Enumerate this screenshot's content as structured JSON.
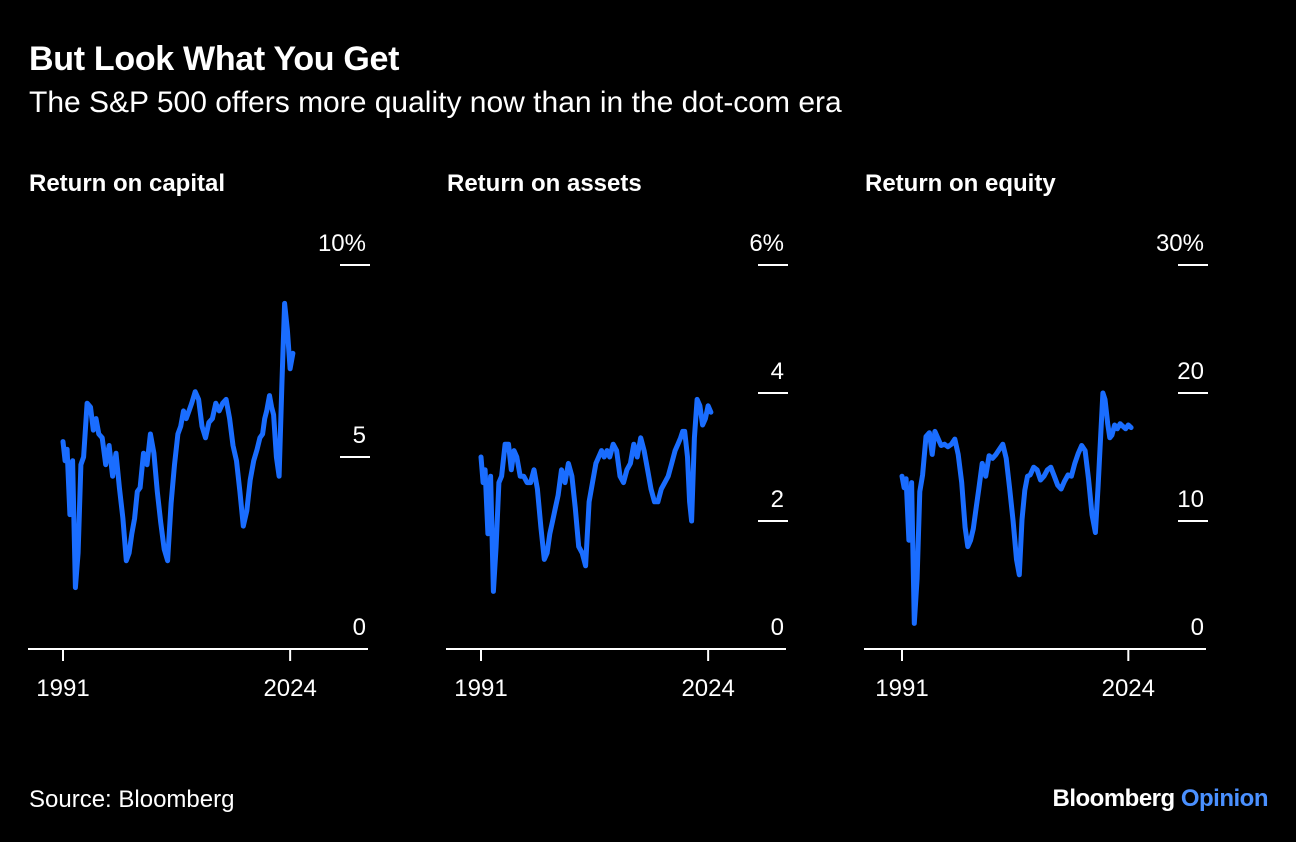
{
  "title": "But Look What You Get",
  "subtitle": "The S&P 500 offers more quality now than in the dot-com era",
  "source": "Source: Bloomberg",
  "brand": {
    "name": "Bloomberg",
    "section": "Opinion"
  },
  "colors": {
    "line": "#1a6dff",
    "background": "#000000",
    "text": "#ffffff",
    "brand_accent": "#4a90ff"
  },
  "chart_data": [
    {
      "type": "line",
      "title": "Return on capital",
      "xlim": [
        1991,
        2030
      ],
      "xticks": [
        1991,
        2024
      ],
      "xtick_labels": [
        "1991",
        "2024"
      ],
      "ylim": [
        0,
        10
      ],
      "yticks": [
        0,
        5,
        10
      ],
      "ytick_labels": [
        "0",
        "5",
        "10%"
      ],
      "grid": false,
      "series": [
        {
          "x": [
            1991.0,
            1991.3,
            1991.6,
            1992.0,
            1992.4,
            1992.8,
            1993.2,
            1993.6,
            1994.0,
            1994.5,
            1995.0,
            1995.4,
            1995.8,
            1996.2,
            1996.7,
            1997.2,
            1997.7,
            1998.2,
            1998.7,
            1999.2,
            1999.7,
            2000.2,
            2000.6,
            2001.0,
            2001.4,
            2001.8,
            2002.2,
            2002.7,
            2003.2,
            2003.7,
            2004.2,
            2004.7,
            2005.2,
            2005.7,
            2006.2,
            2006.7,
            2007.2,
            2007.7,
            2008.1,
            2008.5,
            2008.9,
            2009.3,
            2009.7,
            2010.2,
            2010.7,
            2011.2,
            2011.7,
            2012.2,
            2012.7,
            2013.2,
            2013.7,
            2014.2,
            2014.7,
            2015.2,
            2015.7,
            2016.2,
            2016.7,
            2017.2,
            2017.7,
            2018.2,
            2018.7,
            2019.2,
            2019.6,
            2020.0,
            2020.3,
            2020.6,
            2021.0,
            2021.3,
            2021.6,
            2022.0,
            2022.4,
            2022.8,
            2023.2,
            2023.6,
            2024.0,
            2024.4
          ],
          "y": [
            5.4,
            4.9,
            5.2,
            3.5,
            4.9,
            1.6,
            2.5,
            4.8,
            5.0,
            6.4,
            6.3,
            5.7,
            6.0,
            5.6,
            5.5,
            4.8,
            5.3,
            4.5,
            5.1,
            4.2,
            3.4,
            2.3,
            2.5,
            3.0,
            3.4,
            4.1,
            4.2,
            5.1,
            4.8,
            5.6,
            5.1,
            4.1,
            3.3,
            2.6,
            2.3,
            3.8,
            4.8,
            5.6,
            5.8,
            6.2,
            6.0,
            6.2,
            6.4,
            6.7,
            6.5,
            5.8,
            5.5,
            5.9,
            6.0,
            6.4,
            6.2,
            6.4,
            6.5,
            6.0,
            5.3,
            4.9,
            4.1,
            3.2,
            3.6,
            4.4,
            4.9,
            5.2,
            5.5,
            5.6,
            6.0,
            6.2,
            6.6,
            6.3,
            6.1,
            5.0,
            4.5,
            6.9,
            9.0,
            8.3,
            7.3,
            7.7
          ]
        }
      ]
    },
    {
      "type": "line",
      "title": "Return on assets",
      "xlim": [
        1991,
        2030
      ],
      "xticks": [
        1991,
        2024
      ],
      "xtick_labels": [
        "1991",
        "2024"
      ],
      "ylim": [
        0,
        6
      ],
      "yticks": [
        0,
        2,
        4,
        6
      ],
      "ytick_labels": [
        "0",
        "2",
        "4",
        "6%"
      ],
      "grid": false,
      "series": [
        {
          "x": [
            1991.0,
            1991.3,
            1991.6,
            1992.0,
            1992.4,
            1992.8,
            1993.2,
            1993.6,
            1994.0,
            1994.5,
            1995.0,
            1995.4,
            1995.8,
            1996.2,
            1996.7,
            1997.2,
            1997.7,
            1998.2,
            1998.7,
            1999.2,
            1999.7,
            2000.2,
            2000.6,
            2001.0,
            2001.4,
            2001.8,
            2002.2,
            2002.7,
            2003.2,
            2003.7,
            2004.2,
            2004.7,
            2005.2,
            2005.7,
            2006.2,
            2006.7,
            2007.2,
            2007.7,
            2008.1,
            2008.5,
            2008.9,
            2009.3,
            2009.7,
            2010.2,
            2010.7,
            2011.2,
            2011.7,
            2012.2,
            2012.7,
            2013.2,
            2013.7,
            2014.2,
            2014.7,
            2015.2,
            2015.7,
            2016.2,
            2016.7,
            2017.2,
            2017.7,
            2018.2,
            2018.7,
            2019.2,
            2019.6,
            2020.0,
            2020.3,
            2020.6,
            2021.0,
            2021.3,
            2021.6,
            2022.0,
            2022.4,
            2022.8,
            2023.2,
            2023.6,
            2024.0,
            2024.4
          ],
          "y": [
            3.0,
            2.6,
            2.8,
            1.8,
            2.7,
            0.9,
            1.6,
            2.6,
            2.7,
            3.2,
            3.2,
            2.8,
            3.1,
            3.0,
            2.7,
            2.7,
            2.6,
            2.6,
            2.8,
            2.5,
            1.9,
            1.4,
            1.5,
            1.8,
            2.0,
            2.2,
            2.4,
            2.8,
            2.6,
            2.9,
            2.7,
            2.2,
            1.6,
            1.5,
            1.3,
            2.3,
            2.6,
            2.9,
            3.0,
            3.1,
            3.0,
            3.1,
            3.0,
            3.2,
            3.1,
            2.7,
            2.6,
            2.8,
            2.9,
            3.2,
            3.0,
            3.3,
            3.1,
            2.8,
            2.5,
            2.3,
            2.3,
            2.5,
            2.6,
            2.7,
            2.9,
            3.1,
            3.2,
            3.3,
            3.4,
            3.4,
            3.0,
            2.3,
            2.0,
            3.3,
            3.9,
            3.8,
            3.5,
            3.6,
            3.8,
            3.7
          ]
        }
      ]
    },
    {
      "type": "line",
      "title": "Return on equity",
      "xlim": [
        1991,
        2030
      ],
      "xticks": [
        1991,
        2024
      ],
      "xtick_labels": [
        "1991",
        "2024"
      ],
      "ylim": [
        0,
        30
      ],
      "yticks": [
        0,
        10,
        20,
        30
      ],
      "ytick_labels": [
        "0",
        "10",
        "20",
        "30%"
      ],
      "grid": false,
      "series": [
        {
          "x": [
            1991.0,
            1991.3,
            1991.6,
            1992.0,
            1992.4,
            1992.8,
            1993.2,
            1993.6,
            1994.0,
            1994.5,
            1995.0,
            1995.4,
            1995.8,
            1996.2,
            1996.7,
            1997.2,
            1997.7,
            1998.2,
            1998.7,
            1999.2,
            1999.7,
            2000.2,
            2000.6,
            2001.0,
            2001.4,
            2001.8,
            2002.2,
            2002.7,
            2003.2,
            2003.7,
            2004.2,
            2004.7,
            2005.2,
            2005.7,
            2006.2,
            2006.7,
            2007.2,
            2007.7,
            2008.1,
            2008.5,
            2008.9,
            2009.3,
            2009.7,
            2010.2,
            2010.7,
            2011.2,
            2011.7,
            2012.2,
            2012.7,
            2013.2,
            2013.7,
            2014.2,
            2014.7,
            2015.2,
            2015.7,
            2016.2,
            2016.7,
            2017.2,
            2017.7,
            2018.2,
            2018.7,
            2019.2,
            2019.6,
            2020.0,
            2020.3,
            2020.6,
            2021.0,
            2021.3,
            2021.6,
            2022.0,
            2022.4,
            2022.8,
            2023.2,
            2023.6,
            2024.0,
            2024.4
          ],
          "y": [
            13.5,
            12.6,
            13.3,
            8.5,
            13.0,
            2.0,
            5.5,
            12.3,
            13.6,
            16.6,
            16.9,
            15.2,
            17.0,
            16.5,
            15.9,
            16.0,
            15.8,
            16.0,
            16.4,
            15.2,
            13.0,
            9.5,
            8.0,
            8.5,
            9.4,
            11.0,
            12.5,
            14.5,
            13.5,
            15.1,
            14.9,
            15.2,
            15.6,
            16.0,
            14.9,
            12.5,
            10.0,
            7.0,
            5.8,
            10.1,
            12.4,
            13.5,
            13.6,
            14.2,
            14.0,
            13.2,
            13.5,
            14.0,
            14.2,
            13.5,
            12.8,
            12.5,
            13.1,
            13.6,
            13.5,
            14.5,
            15.3,
            15.9,
            15.5,
            13.3,
            10.5,
            9.1,
            12.7,
            17.0,
            20.0,
            19.5,
            17.6,
            16.5,
            16.7,
            17.5,
            17.2,
            17.6,
            17.4,
            17.2,
            17.5,
            17.3
          ]
        }
      ]
    }
  ]
}
